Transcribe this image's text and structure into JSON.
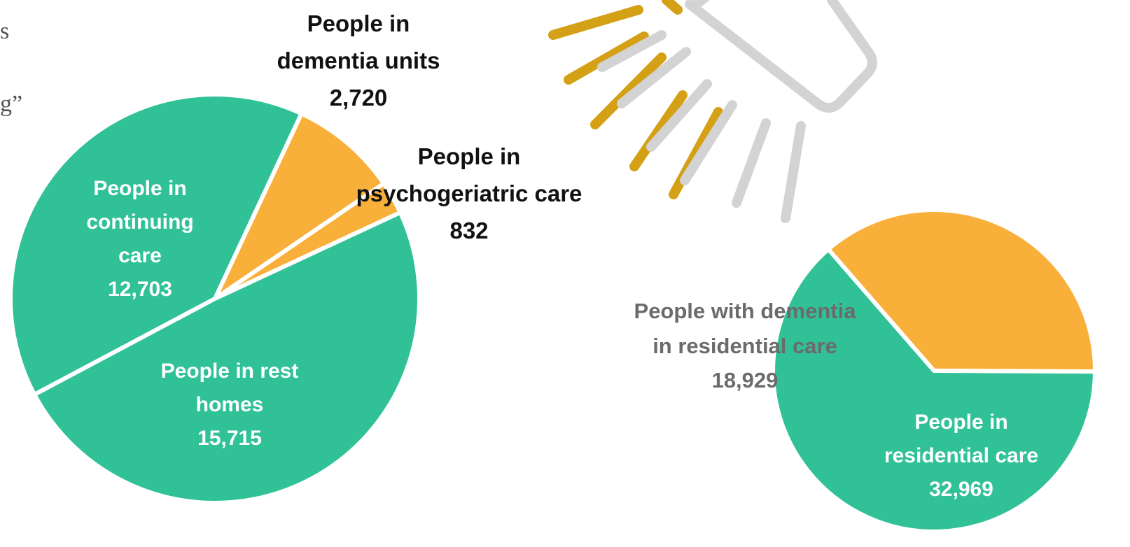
{
  "colors": {
    "green": "#31c196",
    "orange": "#f8b03b",
    "gold": "#d4a015",
    "icon_grey": "#d3d3d3",
    "background": "#ffffff"
  },
  "icon": "lightbulb-with-rays-icon",
  "edge_text": {
    "top": "s",
    "middle": "g”"
  },
  "chart_data": [
    {
      "type": "pie",
      "slices": [
        {
          "label_lines": [
            "People in",
            "continuing",
            "care"
          ],
          "value": 12703,
          "value_text": "12,703",
          "color": "#31c196"
        },
        {
          "label_lines": [
            "People in",
            "dementia units"
          ],
          "value": 2720,
          "value_text": "2,720",
          "color": "#f8b03b"
        },
        {
          "label_lines": [
            "People in",
            "psychogeriatric care"
          ],
          "value": 832,
          "value_text": "832",
          "color": "#f8b03b"
        },
        {
          "label_lines": [
            "People in rest",
            "homes"
          ],
          "value": 15715,
          "value_text": "15,715",
          "color": "#31c196"
        }
      ]
    },
    {
      "type": "pie",
      "slices": [
        {
          "label_lines": [
            "People with dementia",
            "in residential care"
          ],
          "value": 18929,
          "value_text": "18,929",
          "color": "#f8b03b"
        },
        {
          "label_lines": [
            "People in",
            "residential care"
          ],
          "value": 32969,
          "value_text": "32,969",
          "color": "#31c196"
        }
      ]
    }
  ]
}
